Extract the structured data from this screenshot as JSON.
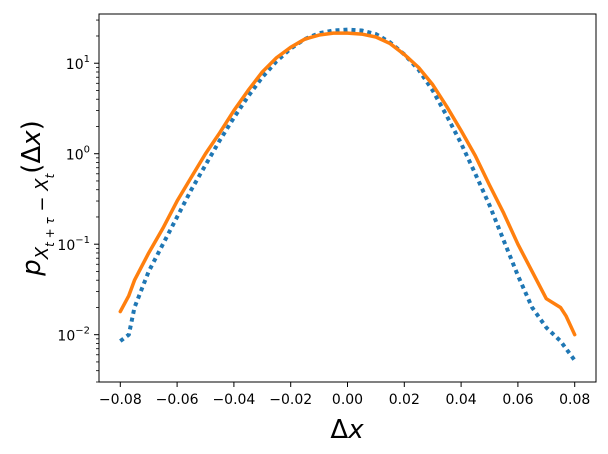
{
  "chart_data": {
    "type": "line",
    "title": "",
    "xlabel": "Δx",
    "ylabel": "p_{X_{t+τ} − X_t}(Δx)",
    "yscale": "log",
    "xlim": [
      -0.0875,
      0.0875
    ],
    "ylim": [
      0.003,
      35
    ],
    "grid": false,
    "legend": "none",
    "x_ticks": [
      -0.08,
      -0.06,
      -0.04,
      -0.02,
      0.0,
      0.02,
      0.04,
      0.06,
      0.08
    ],
    "x_tick_labels": [
      "−0.08",
      "−0.06",
      "−0.04",
      "−0.02",
      "0.00",
      "0.02",
      "0.04",
      "0.06",
      "0.08"
    ],
    "y_ticks": [
      0.01,
      0.1,
      1,
      10
    ],
    "y_tick_labels": [
      {
        "base": "10",
        "exp": "−2"
      },
      {
        "base": "10",
        "exp": "−1"
      },
      {
        "base": "10",
        "exp": "0"
      },
      {
        "base": "10",
        "exp": "1"
      }
    ],
    "series": [
      {
        "color": "#1f77b4",
        "style": "dotted",
        "x": [
          -0.08,
          -0.077,
          -0.075,
          -0.07,
          -0.065,
          -0.06,
          -0.055,
          -0.05,
          -0.045,
          -0.04,
          -0.035,
          -0.03,
          -0.025,
          -0.02,
          -0.015,
          -0.01,
          -0.005,
          0.0,
          0.005,
          0.01,
          0.015,
          0.02,
          0.025,
          0.03,
          0.035,
          0.04,
          0.045,
          0.05,
          0.055,
          0.06,
          0.065,
          0.07,
          0.075,
          0.08
        ],
        "y": [
          0.0085,
          0.01,
          0.02,
          0.05,
          0.1,
          0.2,
          0.4,
          0.75,
          1.4,
          2.5,
          4.3,
          7,
          10.5,
          14.5,
          18.5,
          21.5,
          23,
          23.5,
          23,
          21,
          17,
          12.5,
          8.5,
          5.0,
          2.6,
          1.3,
          0.6,
          0.27,
          0.11,
          0.045,
          0.02,
          0.012,
          0.0085,
          0.0052
        ]
      },
      {
        "color": "#ff7f0e",
        "style": "solid",
        "x": [
          -0.08,
          -0.077,
          -0.075,
          -0.07,
          -0.065,
          -0.06,
          -0.055,
          -0.05,
          -0.045,
          -0.04,
          -0.035,
          -0.03,
          -0.025,
          -0.02,
          -0.015,
          -0.01,
          -0.005,
          0.0,
          0.005,
          0.01,
          0.015,
          0.02,
          0.025,
          0.03,
          0.035,
          0.04,
          0.045,
          0.05,
          0.055,
          0.06,
          0.065,
          0.07,
          0.075,
          0.077,
          0.08
        ],
        "y": [
          0.018,
          0.027,
          0.04,
          0.08,
          0.15,
          0.3,
          0.55,
          1.0,
          1.7,
          3.0,
          5.0,
          8.0,
          11.5,
          15,
          18.5,
          20.5,
          21.5,
          21.5,
          21,
          19.5,
          16.5,
          12.5,
          9.0,
          5.8,
          3.3,
          1.8,
          0.95,
          0.45,
          0.22,
          0.1,
          0.05,
          0.025,
          0.02,
          0.016,
          0.01
        ]
      }
    ]
  }
}
